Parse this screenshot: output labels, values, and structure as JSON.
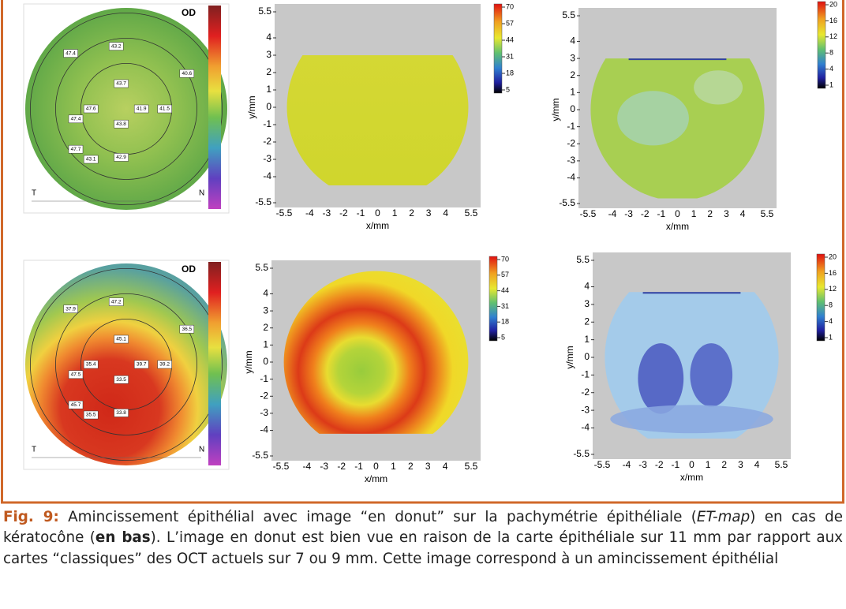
{
  "figure": {
    "panels": [
      {
        "kind": "topography",
        "eye": "OD",
        "temporal": "T",
        "nasal": "N",
        "labels": [
          "47.4",
          "43.2",
          "40.6",
          "43.7",
          "47.6",
          "41.9",
          "41.5",
          "47.4",
          "43.8",
          "47.7",
          "43.1",
          "42.9"
        ]
      },
      {
        "kind": "epithelial",
        "xticks": [
          -5.5,
          -4,
          -3,
          -2,
          -1,
          0,
          1,
          2,
          3,
          4,
          5.5
        ],
        "yticks": [
          5.5,
          4,
          3,
          2,
          1,
          0,
          -1,
          -2,
          -3,
          -4,
          -5.5
        ],
        "xlabel": "x/mm",
        "ylabel": "y/mm",
        "scale": [
          70,
          57,
          44,
          31,
          18,
          5
        ]
      },
      {
        "kind": "difference",
        "xticks": [
          -5.5,
          -4,
          -3,
          -2,
          -1,
          0,
          1,
          2,
          3,
          4,
          5.5
        ],
        "yticks": [
          5.5,
          4,
          3,
          2,
          1,
          0,
          -1,
          -2,
          -3,
          -4,
          -5.5
        ],
        "xlabel": "x/mm",
        "ylabel": "y/mm",
        "scale": [
          20,
          16,
          12,
          8,
          4,
          1
        ]
      },
      {
        "kind": "topography",
        "eye": "OD",
        "temporal": "T",
        "nasal": "N",
        "labels": [
          "37.9",
          "47.2",
          "36.5",
          "45.1",
          "35.4",
          "39.7",
          "39.2",
          "47.5",
          "33.5",
          "45.7",
          "35.5",
          "33.8"
        ]
      },
      {
        "kind": "epithelial",
        "xticks": [
          -5.5,
          -4,
          -3,
          -2,
          -1,
          0,
          1,
          2,
          3,
          4,
          5.5
        ],
        "yticks": [
          5.5,
          4,
          3,
          2,
          1,
          0,
          -1,
          -2,
          -3,
          -4,
          -5.5
        ],
        "xlabel": "x/mm",
        "ylabel": "y/mm",
        "scale": [
          70,
          57,
          44,
          31,
          18,
          5
        ]
      },
      {
        "kind": "difference",
        "xticks": [
          -5.5,
          -4,
          -3,
          -2,
          -1,
          0,
          1,
          2,
          3,
          4,
          5.5
        ],
        "yticks": [
          5.5,
          4,
          3,
          2,
          1,
          0,
          -1,
          -2,
          -3,
          -4,
          -5.5
        ],
        "xlabel": "x/mm",
        "ylabel": "y/mm",
        "scale": [
          20,
          16,
          12,
          8,
          4,
          1
        ]
      }
    ]
  },
  "caption": {
    "label": "Fig. 9:",
    "text1": " Amincissement épithélial avec image “en donut” sur la pachymétrie épithéliale (",
    "italic": "ET-map",
    "text2": ") en cas de kératocône (",
    "bold": "en bas",
    "text3": "). L’image en donut est bien vue en raison de la carte épithéliale sur 11 mm par rapport aux cartes “classiques” des OCT actuels sur 7 ou 9 mm. Cette image correspond à un amincissement épithélial"
  }
}
